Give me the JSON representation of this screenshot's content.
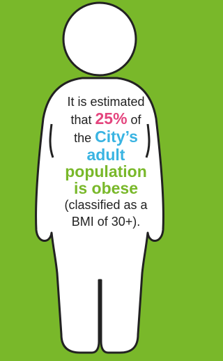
{
  "infographic": {
    "lines": [
      [
        "It is estimated"
      ],
      [
        "that",
        "25%",
        "of"
      ],
      [
        "the",
        "City’s"
      ],
      [
        "adult"
      ],
      [
        "population"
      ],
      [
        "is obese"
      ],
      [
        "(classified as a"
      ],
      [
        "BMI of 30+)."
      ]
    ]
  }
}
